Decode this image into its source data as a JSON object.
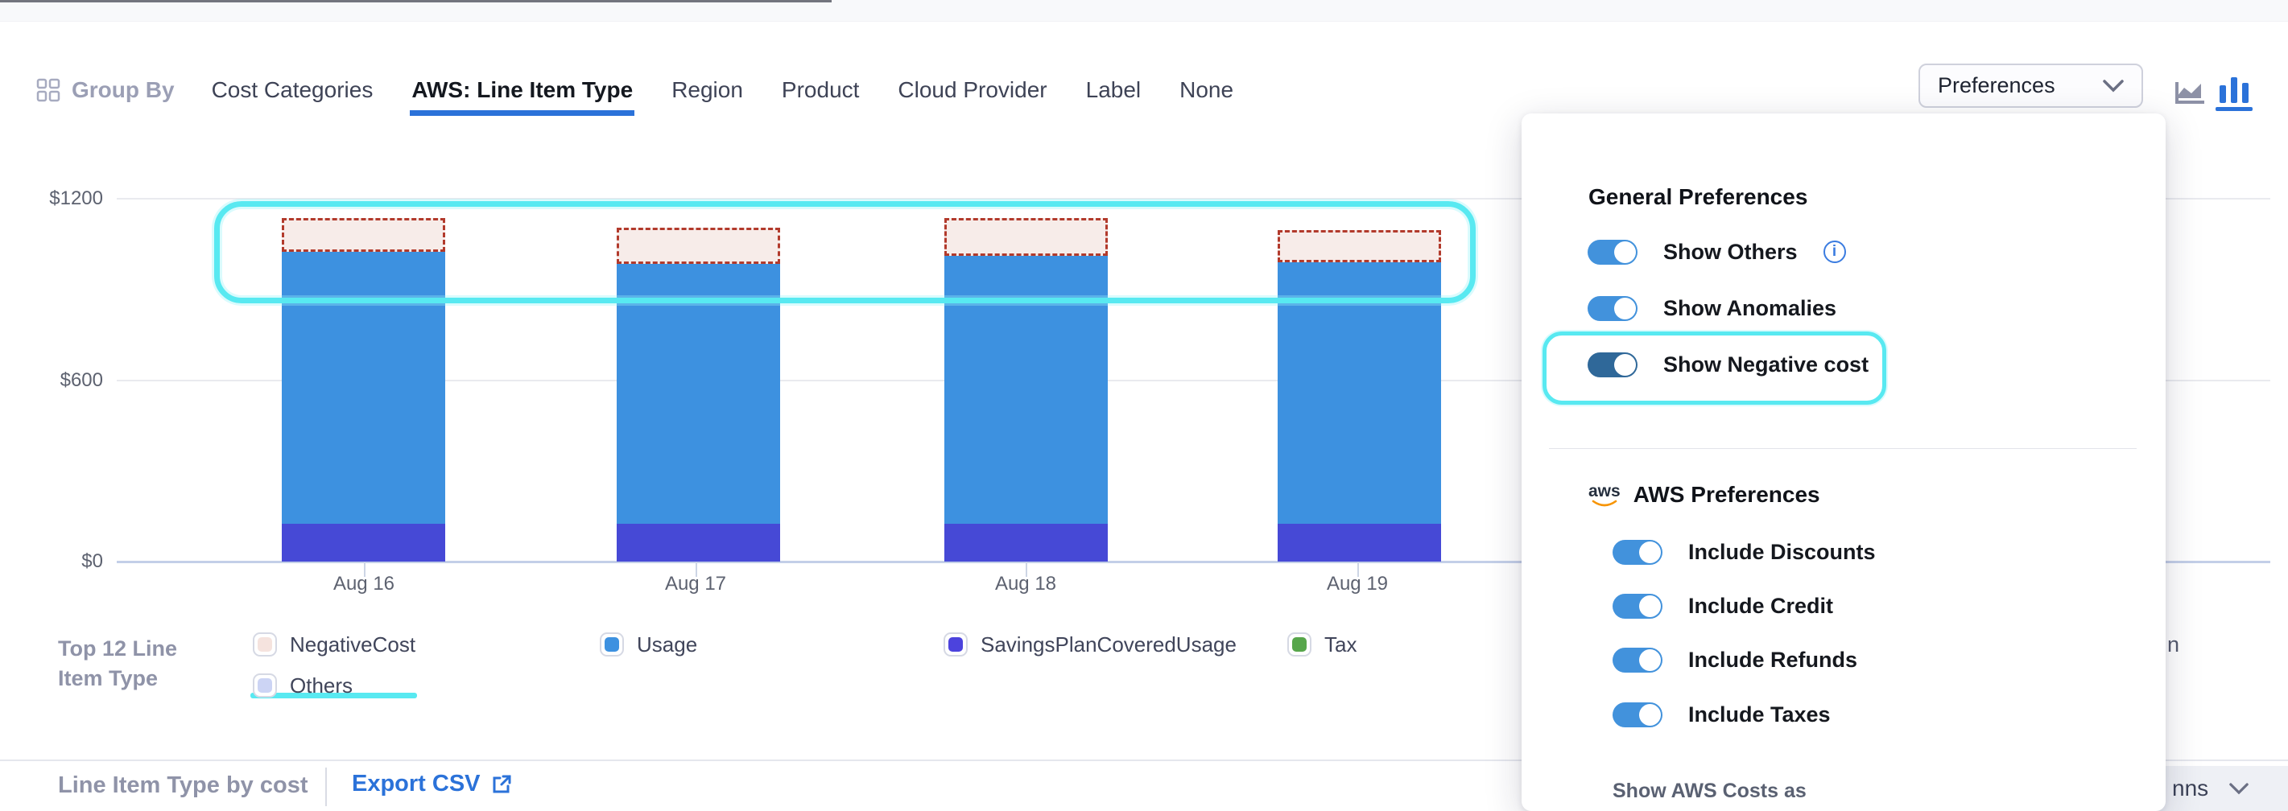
{
  "toolbar": {
    "group_by": "Group By",
    "tabs": [
      {
        "label": "Cost Categories",
        "active": false
      },
      {
        "label": "AWS: Line Item Type",
        "active": true
      },
      {
        "label": "Region",
        "active": false
      },
      {
        "label": "Product",
        "active": false
      },
      {
        "label": "Cloud Provider",
        "active": false
      },
      {
        "label": "Label",
        "active": false
      },
      {
        "label": "None",
        "active": false
      }
    ],
    "preferences_button_label": "Preferences",
    "active_chart_type": "bar"
  },
  "chart_data": {
    "type": "bar",
    "stacked": true,
    "categories": [
      "Aug 16",
      "Aug 17",
      "Aug 18",
      "Aug 19"
    ],
    "series": [
      {
        "name": "SavingsPlanCoveredUsage",
        "color": "#4649d6",
        "values": [
          125,
          125,
          125,
          125
        ]
      },
      {
        "name": "Usage",
        "color": "#3d91e0",
        "values": [
          900,
          860,
          885,
          865
        ]
      },
      {
        "name": "NegativeCost",
        "color": "#f7ece9",
        "border": "#b23a2c",
        "style": "dashed",
        "values": [
          112,
          120,
          125,
          106
        ]
      },
      {
        "name": "Tax",
        "color": "#57a64b",
        "values": [
          0,
          0,
          0,
          0
        ]
      }
    ],
    "y_ticks": [
      "$0",
      "$600",
      "$1200"
    ],
    "y_tick_values": [
      0,
      600,
      1200
    ],
    "ylim": [
      0,
      1200
    ],
    "grid": true,
    "legend_position": "bottom",
    "annotation": "cyan rounded-rectangle highlight around the dashed NegativeCost segments at bar tops"
  },
  "legend": {
    "title": "Top 12 Line Item Type",
    "items": [
      {
        "label": "NegativeCost",
        "color": "#f5e3de",
        "highlighted": true
      },
      {
        "label": "Usage",
        "color": "#3d91e0",
        "highlighted": false
      },
      {
        "label": "SavingsPlanCoveredUsage",
        "color": "#4c43dd",
        "highlighted": false
      },
      {
        "label": "Tax",
        "color": "#57a64b",
        "highlighted": false
      },
      {
        "label": "Others",
        "color": "#ccd4f4",
        "highlighted": false
      }
    ],
    "clipped_item_fragment": "n"
  },
  "preferences_panel": {
    "general_title": "General Preferences",
    "general_toggles": [
      {
        "label": "Show Others",
        "on": true,
        "info": true
      },
      {
        "label": "Show Anomalies",
        "on": true,
        "info": false
      },
      {
        "label": "Show Negative cost",
        "on": true,
        "info": false,
        "highlighted": true
      }
    ],
    "aws_logo": "aws",
    "aws_title": "AWS Preferences",
    "aws_toggles": [
      {
        "label": "Include Discounts",
        "on": true
      },
      {
        "label": "Include Credit",
        "on": true
      },
      {
        "label": "Include Refunds",
        "on": true
      },
      {
        "label": "Include Taxes",
        "on": true
      }
    ],
    "footer_label": "Show AWS Costs as"
  },
  "footer": {
    "section_title": "Line Item Type by cost",
    "export_label": "Export CSV",
    "clipped_button_label": "nns"
  },
  "icons": {
    "info_glyph": "i"
  },
  "colors": {
    "accent_blue": "#2b72d9",
    "toggle_blue": "#4292dc",
    "toggle_dark": "#2f6899",
    "highlight_cyan": "#58e9f1",
    "negative_red": "#b23a2c",
    "bar_blue": "#3d91e0",
    "bar_purple": "#4649d6"
  }
}
